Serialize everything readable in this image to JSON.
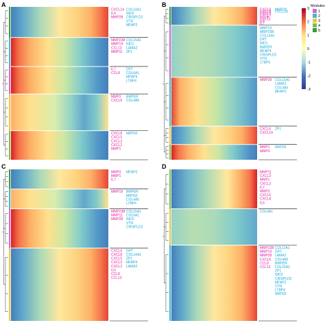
{
  "figure": {
    "panels": [
      {
        "id": "A",
        "label": "A",
        "modules": [
          {
            "mod": 5,
            "rel": 0.2,
            "pattern": "late",
            "magenta": [
              "CXCL14",
              "IL6",
              "MMP28"
            ],
            "cyan": [
              "COL14A1",
              "NID2",
              "CRISPLD2",
              "VTN",
              "MFAP2"
            ]
          },
          {
            "mod": 2,
            "rel": 0.19,
            "pattern": "early",
            "magenta": [
              "MMP23B",
              "MMP19",
              "CCL13",
              "MMP11"
            ],
            "cyan": [
              "COL15A1",
              "NID1",
              "LAMA2",
              "ZP1"
            ]
          },
          {
            "mod": 1,
            "rel": 0.18,
            "pattern": "early",
            "magenta": [
              "IL7",
              "CCL8"
            ],
            "cyan": [
              "DPT",
              "COL6A1",
              "MFAP4",
              "LTBP4"
            ]
          },
          {
            "mod": 3,
            "rel": 0.24,
            "pattern": "mid",
            "magenta": [
              "MMP3",
              "CXCL6"
            ],
            "cyan": [
              "BMPER",
              "COL4A5"
            ]
          },
          {
            "mod": 4,
            "rel": 0.19,
            "pattern": "early",
            "magenta": [
              "CXCL8",
              "CXCL5",
              "CXCL3",
              "CXCL2",
              "MMP1"
            ],
            "cyan": [
              "MATN2"
            ]
          }
        ]
      },
      {
        "id": "B",
        "label": "B",
        "modules": [
          {
            "mod": 5,
            "rel": 0.12,
            "pattern": "late",
            "magenta": [
              "CXCL6",
              "CXCL8",
              "CXCL3",
              "CXCL2",
              "CCL8",
              "CCL13",
              "IL6",
              "IL7"
            ],
            "cyan": [
              "MMP28",
              "CXCL14"
            ]
          },
          {
            "mod": 1,
            "rel": 0.34,
            "pattern": "flat",
            "magenta": [],
            "cyan": [
              "MMP19",
              "MMP23B",
              "COL14A1",
              "DPT",
              "NID1",
              "BMPER",
              "MFAP4",
              "CRISPLD2",
              "VTN",
              "LTBP4"
            ]
          },
          {
            "mod": 2,
            "rel": 0.32,
            "pattern": "earlyneg",
            "magenta": [
              "MMP28"
            ],
            "cyan": [
              "COL15A1",
              "LAMA2",
              "COL4A5",
              "MFAP2"
            ]
          },
          {
            "mod": 3,
            "rel": 0.12,
            "pattern": "late",
            "magenta": [
              "CXCL5",
              "CXCL14"
            ],
            "cyan": [
              "ZP1"
            ]
          },
          {
            "mod": 4,
            "rel": 0.1,
            "pattern": "early",
            "magenta": [
              "MMP1",
              "MMP3"
            ],
            "cyan": [
              "MATN2"
            ]
          }
        ]
      },
      {
        "id": "C",
        "label": "C",
        "modules": [
          {
            "mod": 5,
            "rel": 0.13,
            "pattern": "late",
            "magenta": [
              "MMP3",
              "MMP1",
              "IL7"
            ],
            "cyan": [
              "MFAP2"
            ]
          },
          {
            "mod": 2,
            "rel": 0.13,
            "pattern": "mid",
            "magenta": [
              "MMP19"
            ],
            "cyan": [
              "BMPER",
              "MATN2",
              "COL4A5",
              "LTBP4"
            ]
          },
          {
            "mod": 1,
            "rel": 0.26,
            "pattern": "early",
            "magenta": [
              "MMP23B",
              "MMP11",
              "MMP28"
            ],
            "cyan": [
              "COL15A1",
              "COL6A1",
              "NID2",
              "VTN",
              "CRISPLD2"
            ]
          },
          {
            "mod": 3,
            "rel": 0.48,
            "pattern": "late",
            "magenta": [
              "CXCL6",
              "CXCL8",
              "CXCL5",
              "CXCL3",
              "CXCL2",
              "IL6",
              "CCL8",
              "CCL13"
            ],
            "cyan": [
              "DPT",
              "COL14A1",
              "ZP1",
              "MFAP4",
              "LAMA2"
            ]
          }
        ]
      },
      {
        "id": "D",
        "label": "D",
        "modules": [
          {
            "mod": 4,
            "rel": 0.26,
            "pattern": "lateright",
            "magenta": [
              "MMP11",
              "CXCL3",
              "MMP1",
              "CXCL2",
              "IL7",
              "MMP3",
              "CXCL5",
              "CXCL8",
              "IL6"
            ],
            "cyan": []
          },
          {
            "mod": 3,
            "rel": 0.24,
            "pattern": "flat",
            "magenta": [],
            "cyan": [
              "COL4A1"
            ]
          },
          {
            "mod": 2,
            "rel": 0.5,
            "pattern": "late",
            "magenta": [
              "MMP23B",
              "MMP19",
              "MMP28",
              "CXCL6",
              "CCL8",
              "CCL13"
            ],
            "cyan": [
              "COL11A1",
              "DPT",
              "LAMA2",
              "COL4A5",
              "BMPER",
              "COL15A1",
              "ZP1",
              "NID2",
              "CRISPLD2",
              "MFAP2",
              "VTN",
              "LTBP4",
              "MATN2"
            ]
          }
        ]
      }
    ],
    "legend": {
      "module_title": "Modules",
      "module_values": [
        "1",
        "2",
        "3",
        "4",
        "5"
      ],
      "module_colors": [
        "#c970c9",
        "#45b7d1",
        "#e8c84a",
        "#7fbf4d",
        "#3a9b3a"
      ],
      "scale_ticks": [
        "3",
        "2",
        "1",
        "0",
        "-1",
        "-2",
        "-3"
      ],
      "scale_colors": [
        "#a50026",
        "#f46d43",
        "#fee08b",
        "#ffffbf",
        "#abd9e9",
        "#4575b4",
        "#313695"
      ]
    },
    "label_colors": {
      "magenta": "#e0199e",
      "cyan": "#13a8d8"
    }
  }
}
